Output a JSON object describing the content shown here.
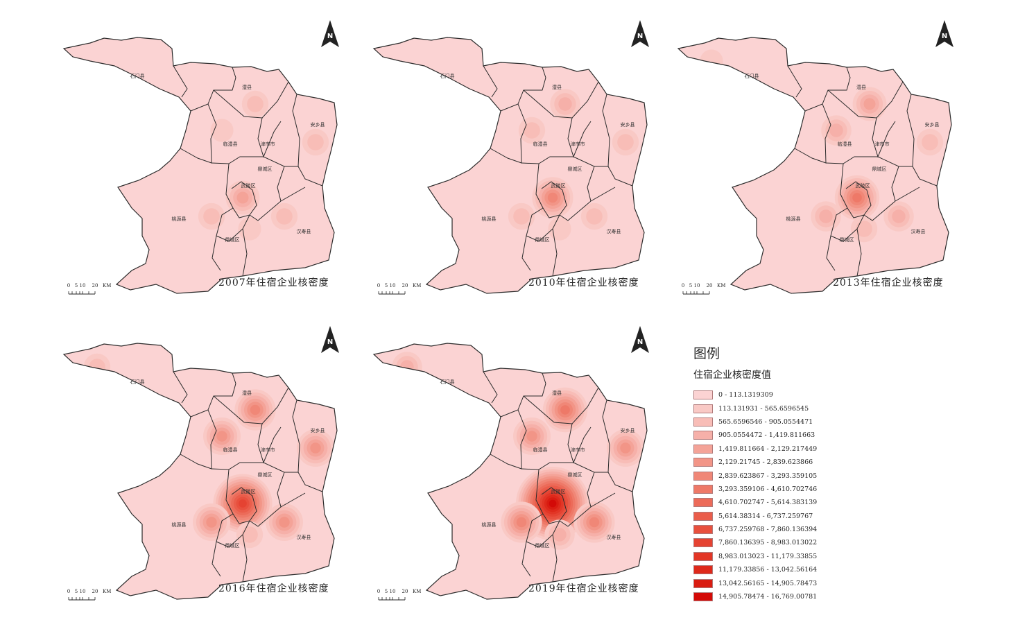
{
  "panels": [
    {
      "title": "2007年住宿企业核密度",
      "year": 2007,
      "hotspots": [
        {
          "place": "武陵区",
          "level": 4
        },
        {
          "place": "澧县",
          "level": 2
        },
        {
          "place": "临澧县",
          "level": 1
        },
        {
          "place": "安乡县",
          "level": 2
        },
        {
          "place": "桃源县",
          "level": 2
        },
        {
          "place": "汉寿县",
          "level": 2
        },
        {
          "place": "鼎城区",
          "level": 1
        }
      ]
    },
    {
      "title": "2010年住宿企业核密度",
      "year": 2010,
      "hotspots": [
        {
          "place": "武陵区",
          "level": 6
        },
        {
          "place": "澧县",
          "level": 3
        },
        {
          "place": "临澧县",
          "level": 2
        },
        {
          "place": "安乡县",
          "level": 2
        },
        {
          "place": "桃源县",
          "level": 2
        },
        {
          "place": "汉寿县",
          "level": 2
        },
        {
          "place": "鼎城区",
          "level": 1
        }
      ]
    },
    {
      "title": "2013年住宿企业核密度",
      "year": 2013,
      "hotspots": [
        {
          "place": "武陵区",
          "level": 7
        },
        {
          "place": "澧县",
          "level": 4
        },
        {
          "place": "临澧县",
          "level": 3
        },
        {
          "place": "安乡县",
          "level": 2
        },
        {
          "place": "桃源县",
          "level": 3
        },
        {
          "place": "汉寿县",
          "level": 3
        },
        {
          "place": "鼎城区",
          "level": 2
        },
        {
          "place": "石门县",
          "level": 1
        }
      ]
    },
    {
      "title": "2016年住宿企业核密度",
      "year": 2016,
      "hotspots": [
        {
          "place": "武陵区",
          "level": 11
        },
        {
          "place": "澧县",
          "level": 6
        },
        {
          "place": "临澧县",
          "level": 5
        },
        {
          "place": "安乡县",
          "level": 5
        },
        {
          "place": "桃源县",
          "level": 5
        },
        {
          "place": "汉寿县",
          "level": 5
        },
        {
          "place": "鼎城区",
          "level": 2
        },
        {
          "place": "石门县",
          "level": 2
        }
      ]
    },
    {
      "title": "2019年住宿企业核密度",
      "year": 2019,
      "hotspots": [
        {
          "place": "武陵区",
          "level": 15
        },
        {
          "place": "澧县",
          "level": 7
        },
        {
          "place": "临澧县",
          "level": 5
        },
        {
          "place": "安乡县",
          "level": 5
        },
        {
          "place": "桃源县",
          "level": 6
        },
        {
          "place": "汉寿县",
          "level": 6
        },
        {
          "place": "鼎城区",
          "level": 3
        },
        {
          "place": "石门县",
          "level": 3
        }
      ]
    }
  ],
  "places": [
    "石门县",
    "澧县",
    "临澧县",
    "津市市",
    "安乡县",
    "鼎城区",
    "武陵区",
    "桃源县",
    "鼎城区",
    "汉寿县"
  ],
  "scale_bar": {
    "ticks": [
      "0",
      "5",
      "10",
      "20"
    ],
    "unit": "KM"
  },
  "north_label": "N",
  "legend": {
    "title": "图例",
    "subtitle": "住宿企业核密度值",
    "classes": [
      {
        "label": "0 - 113.1319309",
        "color": "#fbd3d3"
      },
      {
        "label": "113.131931 - 565.6596545",
        "color": "#f9c9c5"
      },
      {
        "label": "565.6596546 - 905.0554471",
        "color": "#f8bdb7"
      },
      {
        "label": "905.0554472 - 1,419.811663",
        "color": "#f6b0a9"
      },
      {
        "label": "1,419.811664 - 2,129.217449",
        "color": "#f4a398"
      },
      {
        "label": "2,129.21745 - 2,839.623866",
        "color": "#f29587"
      },
      {
        "label": "2,839.623867 - 3,293.359105",
        "color": "#f08777"
      },
      {
        "label": "3,293.359106 - 4,610.702746",
        "color": "#ee7968"
      },
      {
        "label": "4,610.702747 - 5,614.383139",
        "color": "#ec6b59"
      },
      {
        "label": "5,614.38314 - 6,737.259767",
        "color": "#ea5d4b"
      },
      {
        "label": "6,737.259768 - 7,860.136394",
        "color": "#e8503e"
      },
      {
        "label": "7,860.136395 - 8,983.013022",
        "color": "#e54332"
      },
      {
        "label": "8,983.013023 - 11,179.33855",
        "color": "#e23626"
      },
      {
        "label": "11,179.33856 - 13,042.56164",
        "color": "#de291b"
      },
      {
        "label": "13,042.56165 - 14,905.78473",
        "color": "#d91c11"
      },
      {
        "label": "14,905.78474 - 16,769.00781",
        "color": "#d30a07"
      }
    ]
  },
  "colors": {
    "base_fill": "#fbd3d3",
    "boundary": "#2b2b2b",
    "hot": "#d30a07"
  }
}
